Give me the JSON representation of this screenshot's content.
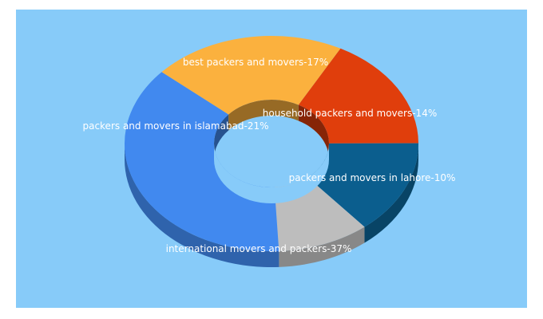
{
  "chart_data": {
    "type": "pie",
    "style": "3d-donut",
    "title": "",
    "background": "#87CBF9",
    "slices": [
      {
        "label": "best packers and movers",
        "value": 17,
        "color": "#E03E0C",
        "display": "best packers and movers-17%"
      },
      {
        "label": "household packers and movers",
        "value": 14,
        "color": "#0B5E8E",
        "display": "household packers and movers-14%"
      },
      {
        "label": "packers and movers in lahore",
        "value": 10,
        "color": "#BDBDBD",
        "display": "packers and movers in lahore-10%"
      },
      {
        "label": "international movers and packers",
        "value": 37,
        "color": "#4189EF",
        "display": "international movers and packers-37%"
      },
      {
        "label": "packers and movers in islamabad",
        "value": 21,
        "color": "#FBB13E",
        "display": "packers and movers in islamabad-21%"
      }
    ]
  }
}
